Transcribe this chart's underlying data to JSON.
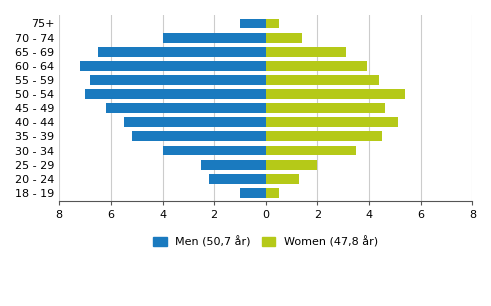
{
  "age_groups": [
    "75+",
    "70 - 74",
    "65 - 69",
    "60 - 64",
    "55 - 59",
    "50 - 54",
    "45 - 49",
    "40 - 44",
    "35 - 39",
    "30 - 34",
    "25 - 29",
    "20 - 24",
    "18 - 19"
  ],
  "men_values": [
    1.0,
    4.0,
    6.5,
    7.2,
    6.8,
    7.0,
    6.2,
    5.5,
    5.2,
    4.0,
    2.5,
    2.2,
    1.0
  ],
  "women_values": [
    0.5,
    1.4,
    3.1,
    3.9,
    4.4,
    5.4,
    4.6,
    5.1,
    4.5,
    3.5,
    2.0,
    1.3,
    0.5
  ],
  "men_color": "#1a7abf",
  "women_color": "#b5c918",
  "xlim": [
    -8,
    8
  ],
  "xticks": [
    -8,
    -6,
    -4,
    -2,
    0,
    2,
    4,
    6,
    8
  ],
  "xticklabels": [
    "8",
    "6",
    "4",
    "2",
    "0",
    "2",
    "4",
    "6",
    "8"
  ],
  "men_label": "Men (50,7 år)",
  "women_label": "Women (47,8 år)",
  "background_color": "#ffffff",
  "grid_color": "#cccccc",
  "bar_height": 0.7
}
